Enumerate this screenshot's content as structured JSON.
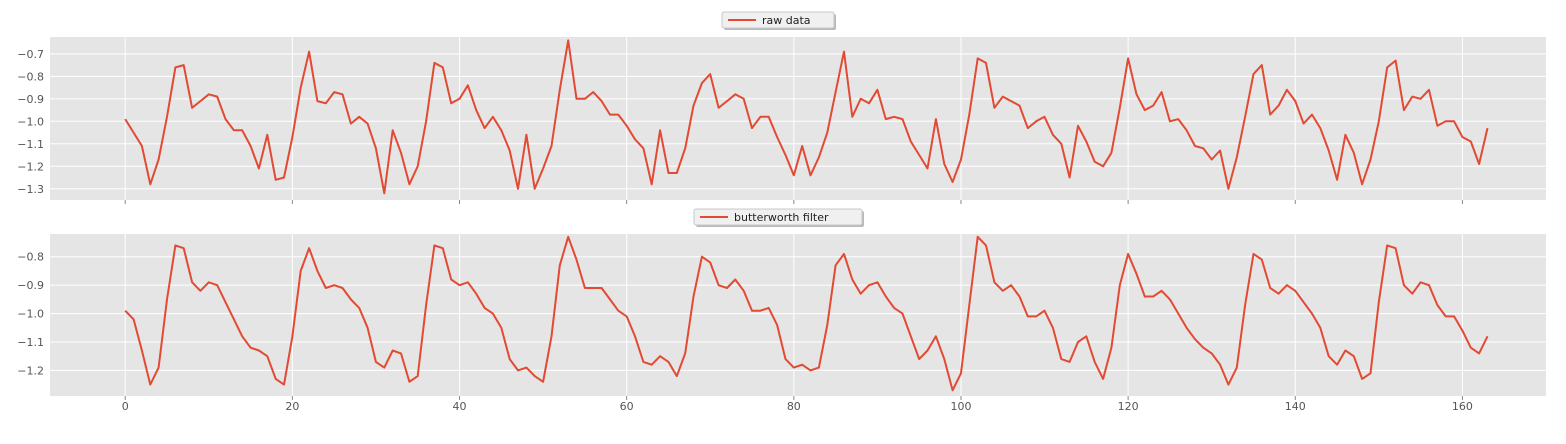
{
  "chart_data": [
    {
      "type": "line",
      "title": "",
      "xlabel": "",
      "ylabel": "",
      "legend": "top-center",
      "grid": true,
      "xlim": [
        -9,
        170
      ],
      "ylim": [
        -1.35,
        -0.625
      ],
      "xticks": [
        0,
        20,
        40,
        60,
        80,
        100,
        120,
        140,
        160
      ],
      "xtick_labels_visible": false,
      "yticks": [
        -0.7,
        -0.8,
        -0.9,
        -1.0,
        -1.1,
        -1.2,
        -1.3
      ],
      "ytick_labels": [
        "−0.7",
        "−0.8",
        "−0.9",
        "−1.0",
        "−1.1",
        "−1.2",
        "−1.3"
      ],
      "series": [
        {
          "name": "raw data",
          "color": "#E24A33",
          "values": [
            -0.99,
            -1.05,
            -1.11,
            -1.28,
            -1.17,
            -0.98,
            -0.76,
            -0.75,
            -0.94,
            -0.91,
            -0.88,
            -0.89,
            -0.99,
            -1.04,
            -1.04,
            -1.11,
            -1.21,
            -1.06,
            -1.26,
            -1.25,
            -1.07,
            -0.85,
            -0.69,
            -0.91,
            -0.92,
            -0.87,
            -0.88,
            -1.01,
            -0.98,
            -1.01,
            -1.12,
            -1.32,
            -1.04,
            -1.14,
            -1.28,
            -1.2,
            -1.0,
            -0.74,
            -0.76,
            -0.92,
            -0.9,
            -0.84,
            -0.95,
            -1.03,
            -0.98,
            -1.04,
            -1.13,
            -1.3,
            -1.06,
            -1.3,
            -1.21,
            -1.11,
            -0.86,
            -0.64,
            -0.9,
            -0.9,
            -0.87,
            -0.91,
            -0.97,
            -0.97,
            -1.02,
            -1.08,
            -1.12,
            -1.28,
            -1.04,
            -1.23,
            -1.23,
            -1.12,
            -0.93,
            -0.83,
            -0.79,
            -0.94,
            -0.91,
            -0.88,
            -0.9,
            -1.03,
            -0.98,
            -0.98,
            -1.07,
            -1.15,
            -1.24,
            -1.11,
            -1.24,
            -1.16,
            -1.05,
            -0.87,
            -0.69,
            -0.98,
            -0.9,
            -0.92,
            -0.86,
            -0.99,
            -0.98,
            -0.99,
            -1.09,
            -1.15,
            -1.21,
            -0.99,
            -1.19,
            -1.27,
            -1.17,
            -0.97,
            -0.72,
            -0.74,
            -0.94,
            -0.89,
            -0.91,
            -0.93,
            -1.03,
            -1.0,
            -0.98,
            -1.06,
            -1.1,
            -1.25,
            -1.02,
            -1.09,
            -1.18,
            -1.2,
            -1.14,
            -0.94,
            -0.72,
            -0.88,
            -0.95,
            -0.93,
            -0.87,
            -1.0,
            -0.99,
            -1.04,
            -1.11,
            -1.12,
            -1.17,
            -1.13,
            -1.3,
            -1.16,
            -0.98,
            -0.79,
            -0.75,
            -0.97,
            -0.93,
            -0.86,
            -0.91,
            -1.01,
            -0.97,
            -1.03,
            -1.13,
            -1.26,
            -1.06,
            -1.14,
            -1.28,
            -1.17,
            -1.0,
            -0.76,
            -0.73,
            -0.95,
            -0.89,
            -0.9,
            -0.86,
            -1.02,
            -1.0,
            -1.0,
            -1.07,
            -1.09,
            -1.19,
            -1.03
          ]
        }
      ]
    },
    {
      "type": "line",
      "title": "",
      "xlabel": "",
      "ylabel": "",
      "legend": "top-center",
      "grid": true,
      "xlim": [
        -9,
        170
      ],
      "ylim": [
        -1.29,
        -0.72
      ],
      "xticks": [
        0,
        20,
        40,
        60,
        80,
        100,
        120,
        140,
        160
      ],
      "xtick_labels": [
        "0",
        "20",
        "40",
        "60",
        "80",
        "100",
        "120",
        "140",
        "160"
      ],
      "yticks": [
        -0.8,
        -0.9,
        -1.0,
        -1.1,
        -1.2
      ],
      "ytick_labels": [
        "−0.8",
        "−0.9",
        "−1.0",
        "−1.1",
        "−1.2"
      ],
      "series": [
        {
          "name": "butterworth filter",
          "color": "#E24A33",
          "values": [
            -0.99,
            -1.02,
            -1.13,
            -1.25,
            -1.19,
            -0.95,
            -0.76,
            -0.77,
            -0.89,
            -0.92,
            -0.89,
            -0.9,
            -0.96,
            -1.02,
            -1.08,
            -1.12,
            -1.13,
            -1.15,
            -1.23,
            -1.25,
            -1.08,
            -0.85,
            -0.77,
            -0.85,
            -0.91,
            -0.9,
            -0.91,
            -0.95,
            -0.98,
            -1.05,
            -1.17,
            -1.19,
            -1.13,
            -1.14,
            -1.24,
            -1.22,
            -0.97,
            -0.76,
            -0.77,
            -0.88,
            -0.9,
            -0.89,
            -0.93,
            -0.98,
            -1.0,
            -1.05,
            -1.16,
            -1.2,
            -1.19,
            -1.22,
            -1.24,
            -1.08,
            -0.83,
            -0.73,
            -0.81,
            -0.91,
            -0.91,
            -0.91,
            -0.95,
            -0.99,
            -1.01,
            -1.08,
            -1.17,
            -1.18,
            -1.15,
            -1.17,
            -1.22,
            -1.14,
            -0.94,
            -0.8,
            -0.82,
            -0.9,
            -0.91,
            -0.88,
            -0.92,
            -0.99,
            -0.99,
            -0.98,
            -1.04,
            -1.16,
            -1.19,
            -1.18,
            -1.2,
            -1.19,
            -1.04,
            -0.83,
            -0.79,
            -0.88,
            -0.93,
            -0.9,
            -0.89,
            -0.94,
            -0.98,
            -1.0,
            -1.08,
            -1.16,
            -1.13,
            -1.08,
            -1.16,
            -1.27,
            -1.21,
            -0.97,
            -0.73,
            -0.76,
            -0.89,
            -0.92,
            -0.9,
            -0.94,
            -1.01,
            -1.01,
            -0.99,
            -1.05,
            -1.16,
            -1.17,
            -1.1,
            -1.08,
            -1.17,
            -1.23,
            -1.12,
            -0.9,
            -0.79,
            -0.86,
            -0.94,
            -0.94,
            -0.92,
            -0.95,
            -1.0,
            -1.05,
            -1.09,
            -1.12,
            -1.14,
            -1.18,
            -1.25,
            -1.19,
            -0.97,
            -0.79,
            -0.81,
            -0.91,
            -0.93,
            -0.9,
            -0.92,
            -0.96,
            -1.0,
            -1.05,
            -1.15,
            -1.18,
            -1.13,
            -1.15,
            -1.23,
            -1.21,
            -0.96,
            -0.76,
            -0.77,
            -0.9,
            -0.93,
            -0.89,
            -0.9,
            -0.97,
            -1.01,
            -1.01,
            -1.06,
            -1.12,
            -1.14,
            -1.08
          ]
        }
      ]
    }
  ]
}
